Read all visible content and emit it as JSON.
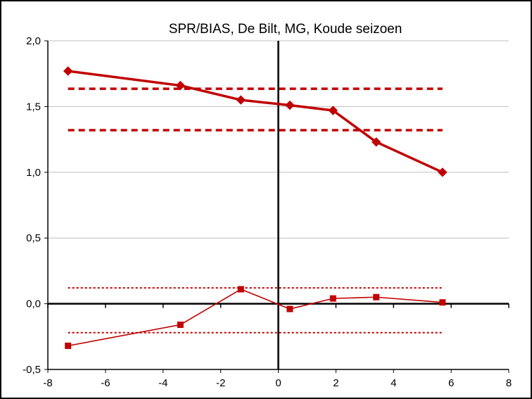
{
  "chart_data": {
    "type": "line",
    "title": "SPR/BIAS, De Bilt, MG, Koude seizoen",
    "xlabel": "",
    "ylabel": "",
    "xlim": [
      -8,
      8
    ],
    "ylim": [
      -0.5,
      2.0
    ],
    "x_ticks": [
      -8,
      -6,
      -4,
      -2,
      0,
      2,
      4,
      6,
      8
    ],
    "x_tick_labels": [
      "-8",
      "-6",
      "-4",
      "-2",
      "0",
      "2",
      "4",
      "6",
      "8"
    ],
    "y_ticks": [
      -0.5,
      0.0,
      0.5,
      1.0,
      1.5,
      2.0
    ],
    "y_tick_labels": [
      "-0,5",
      "0,0",
      "0,5",
      "1,0",
      "1,5",
      "2,0"
    ],
    "grid": "horizontal",
    "series": [
      {
        "marker": "diamond",
        "color": "#c00000",
        "line": "thick",
        "x": [
          -7.3,
          -3.4,
          -1.3,
          0.4,
          1.9,
          3.4,
          5.7
        ],
        "y": [
          1.77,
          1.66,
          1.55,
          1.51,
          1.47,
          1.23,
          1.0
        ]
      },
      {
        "marker": "square",
        "color": "#c00000",
        "line": "thin",
        "x": [
          -7.3,
          -3.4,
          -1.3,
          0.4,
          1.9,
          3.4,
          5.7
        ],
        "y": [
          -0.32,
          -0.16,
          0.11,
          -0.04,
          0.04,
          0.05,
          0.01
        ]
      }
    ],
    "reference_lines": [
      {
        "style": "thick-dashed",
        "color": "#c00000",
        "x": [
          -7.3,
          5.7
        ],
        "y": 1.635
      },
      {
        "style": "thick-dashed",
        "color": "#c00000",
        "x": [
          -7.3,
          5.7
        ],
        "y": 1.32
      },
      {
        "style": "thin-dotted",
        "color": "#c00000",
        "x": [
          -7.3,
          5.7
        ],
        "y": 0.12
      },
      {
        "style": "thin-dotted",
        "color": "#c00000",
        "x": [
          -7.3,
          5.7
        ],
        "y": -0.22
      }
    ]
  }
}
